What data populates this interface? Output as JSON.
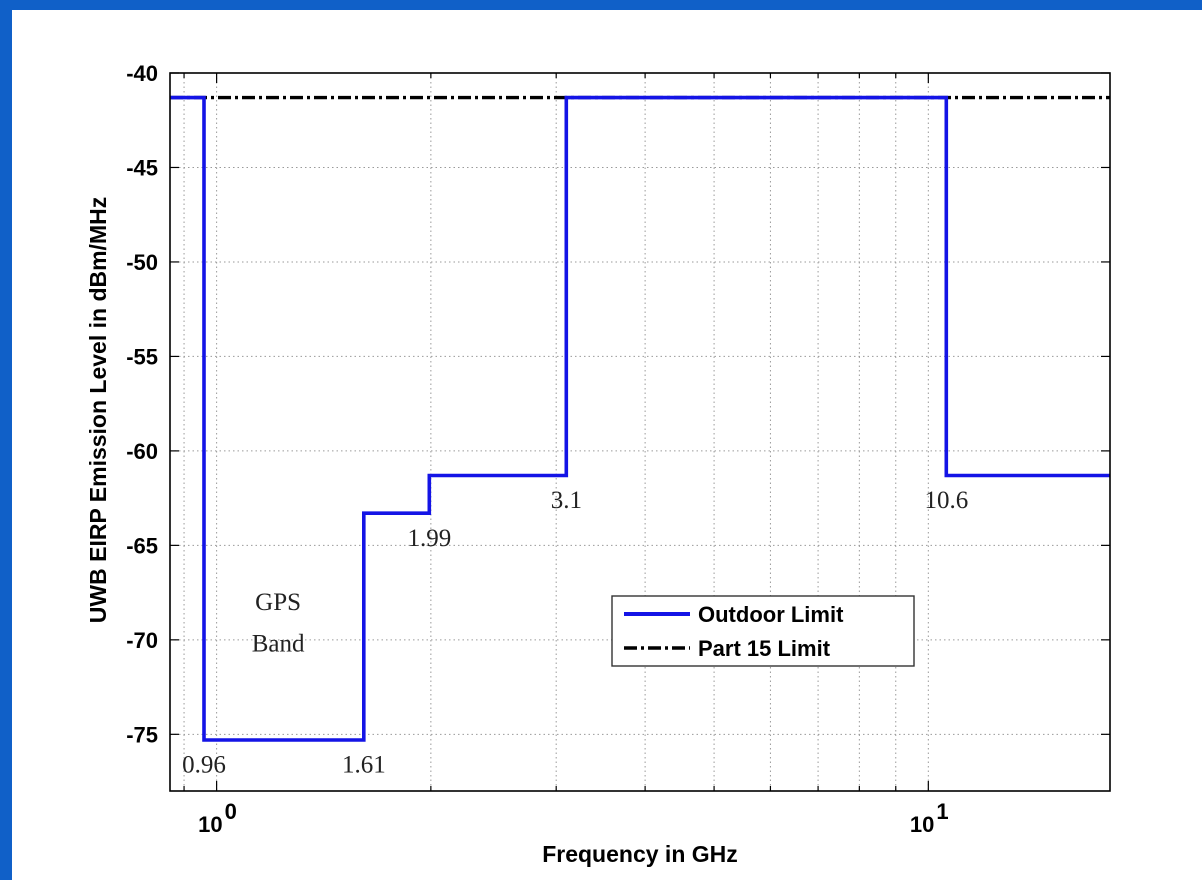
{
  "chart_data": {
    "type": "line",
    "xscale": "log",
    "xlim": [
      0.86,
      18
    ],
    "ylim": [
      -78,
      -40
    ],
    "grid": true,
    "xlabel": "Frequency in GHz",
    "ylabel": "UWB EIRP Emission Level in dBm/MHz",
    "yticks": [
      -40,
      -45,
      -50,
      -55,
      -60,
      -65,
      -70,
      -75
    ],
    "ytick_labels": [
      "-40",
      "-45",
      "-50",
      "-55",
      "-60",
      "-65",
      "-70",
      "-75"
    ],
    "xticks": [
      1,
      10
    ],
    "xtick_labels": [
      {
        "base": "10",
        "exp": "0"
      },
      {
        "base": "10",
        "exp": "1"
      }
    ],
    "series": [
      {
        "name": "Outdoor Limit",
        "color": "#1414e6",
        "style": "solid",
        "x": [
          0.86,
          0.96,
          0.96,
          1.61,
          1.61,
          1.99,
          1.99,
          3.1,
          3.1,
          10.6,
          10.6,
          18
        ],
        "y": [
          -41.3,
          -41.3,
          -75.3,
          -75.3,
          -63.3,
          -63.3,
          -61.3,
          -61.3,
          -41.3,
          -41.3,
          -61.3,
          -61.3
        ]
      },
      {
        "name": "Part 15 Limit",
        "color": "#000000",
        "style": "dashdot",
        "x": [
          0.86,
          18
        ],
        "y": [
          -41.3,
          -41.3
        ]
      }
    ],
    "annotations": [
      {
        "text": "0.96",
        "x": 0.96,
        "y": -76.6
      },
      {
        "text": "1.61",
        "x": 1.61,
        "y": -76.6
      },
      {
        "text": "1.99",
        "x": 1.99,
        "y": -64.6
      },
      {
        "text": "3.1",
        "x": 3.1,
        "y": -62.6
      },
      {
        "text": "10.6",
        "x": 10.6,
        "y": -62.6
      },
      {
        "text": "GPS",
        "x": 1.22,
        "y": -68.0
      },
      {
        "text": "Band",
        "x": 1.22,
        "y": -70.2
      }
    ],
    "legend": {
      "position": "lower-right",
      "entries": [
        "Outdoor Limit",
        "Part 15 Limit"
      ]
    }
  }
}
